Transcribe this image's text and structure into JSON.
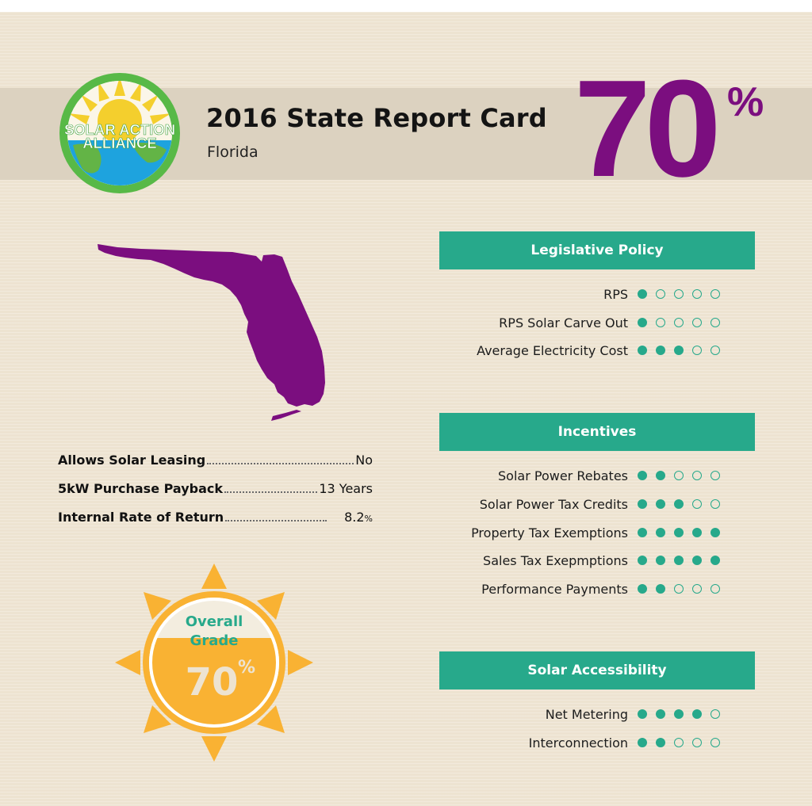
{
  "header": {
    "title": "2016 State Report Card",
    "state": "Florida",
    "grade_number": "70",
    "grade_symbol": "%"
  },
  "logo": {
    "line1": "SOLAR ACTION",
    "line2": "ALLIANCE"
  },
  "stats": [
    {
      "label": "Allows Solar Leasing",
      "value": "No",
      "suffix": ""
    },
    {
      "label": "5kW Purchase Payback",
      "value": "13 Years",
      "suffix": ""
    },
    {
      "label": "Internal Rate of Return",
      "value": "8.2",
      "suffix": "%"
    }
  ],
  "overall": {
    "line1": "Overall",
    "line2": "Grade",
    "number": "70",
    "symbol": "%"
  },
  "sections": [
    {
      "title": "Legislative Policy",
      "items": [
        {
          "label": "RPS",
          "rating": 1
        },
        {
          "label": "RPS Solar Carve Out",
          "rating": 1
        },
        {
          "label": "Average Electricity Cost",
          "rating": 3
        }
      ]
    },
    {
      "title": "Incentives",
      "items": [
        {
          "label": "Solar Power Rebates",
          "rating": 2
        },
        {
          "label": "Solar Power Tax Credits",
          "rating": 3
        },
        {
          "label": "Property Tax Exemptions",
          "rating": 5
        },
        {
          "label": "Sales Tax Exepmptions",
          "rating": 5
        },
        {
          "label": "Performance Payments",
          "rating": 2
        }
      ]
    },
    {
      "title": "Solar Accessibility",
      "items": [
        {
          "label": "Net Metering",
          "rating": 4
        },
        {
          "label": "Interconnection",
          "rating": 2
        }
      ]
    }
  ],
  "rating_max": 5,
  "colors": {
    "accent": "#27a98b",
    "grade": "#7b0e7f",
    "sun": "#f9b233",
    "map": "#7b0e7f"
  }
}
